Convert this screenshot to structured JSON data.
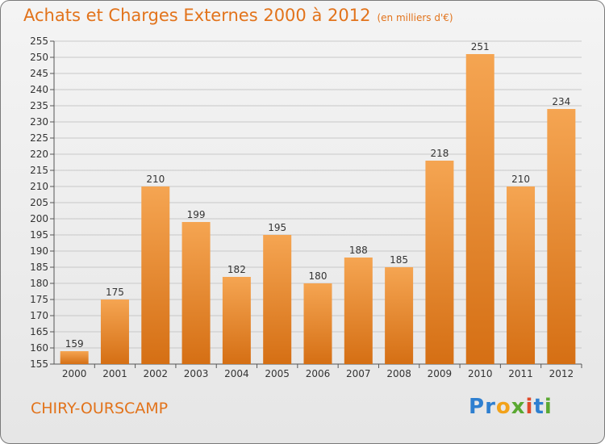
{
  "header": {
    "title": "Achats et Charges Externes 2000 à 2012",
    "unit": "(en milliers d'€)"
  },
  "footer": {
    "commune": "CHIRY-OURSCAMP",
    "logo_letters": [
      {
        "ch": "P",
        "color": "#2e7fd0"
      },
      {
        "ch": "r",
        "color": "#2e7fd0"
      },
      {
        "ch": "o",
        "color": "#f2a21a"
      },
      {
        "ch": "x",
        "color": "#5aa832"
      },
      {
        "ch": "i",
        "color": "#e04a2a"
      },
      {
        "ch": "t",
        "color": "#2e7fd0"
      },
      {
        "ch": "i",
        "color": "#5aa832"
      }
    ]
  },
  "colors": {
    "accent": "#e2731b",
    "bar_top": "#f5a552",
    "bar_bottom": "#d56f14"
  },
  "chart_data": {
    "type": "bar",
    "title": "Achats et Charges Externes 2000 à 2012",
    "subtitle": "(en milliers d'€)",
    "categories": [
      "2000",
      "2001",
      "2002",
      "2003",
      "2004",
      "2005",
      "2006",
      "2007",
      "2008",
      "2009",
      "2010",
      "2011",
      "2012"
    ],
    "values": [
      159,
      175,
      210,
      199,
      182,
      195,
      180,
      188,
      185,
      218,
      251,
      210,
      234
    ],
    "ylim": [
      155,
      255
    ],
    "yticks": [
      155,
      160,
      165,
      170,
      175,
      180,
      185,
      190,
      195,
      200,
      205,
      210,
      215,
      220,
      225,
      230,
      235,
      240,
      245,
      250,
      255
    ],
    "grid": true,
    "xlabel": "",
    "ylabel": ""
  }
}
